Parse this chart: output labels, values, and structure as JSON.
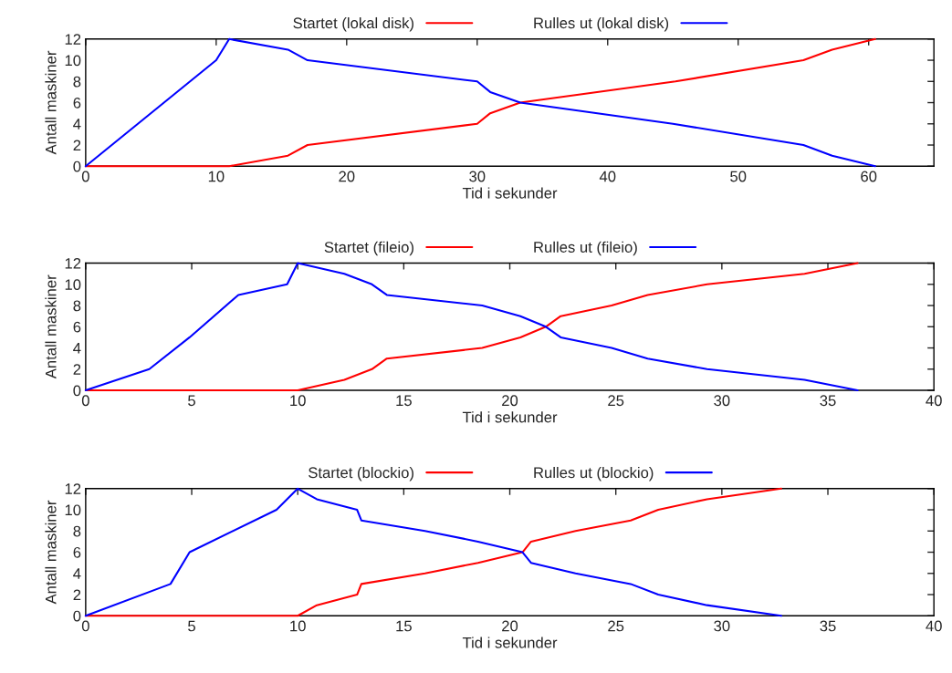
{
  "chart_data": [
    {
      "type": "line",
      "xlabel": "Tid i sekunder",
      "ylabel": "Antall maskiner",
      "xlim": [
        0,
        65
      ],
      "xticks": [
        0,
        10,
        20,
        30,
        40,
        50,
        60
      ],
      "ylim": [
        0,
        12
      ],
      "yticks": [
        0,
        2,
        4,
        6,
        8,
        10,
        12
      ],
      "legend": "top",
      "grid": false,
      "series": [
        {
          "name": "Startet (lokal disk)",
          "color": "#ff0000",
          "x": [
            0,
            11,
            15.5,
            17,
            30,
            31,
            33.3,
            45.2,
            55,
            57.2,
            60.5
          ],
          "values": [
            0,
            0,
            1,
            2,
            4,
            5,
            6,
            8,
            10,
            11,
            12
          ]
        },
        {
          "name": "Rulles ut (lokal disk)",
          "color": "#0000ff",
          "x": [
            0,
            10,
            11,
            15.5,
            17,
            30,
            31,
            33.3,
            45,
            55,
            57.2,
            60.5
          ],
          "values": [
            0,
            10,
            12,
            11,
            10,
            8,
            7,
            6,
            4,
            2,
            1,
            0
          ]
        }
      ]
    },
    {
      "type": "line",
      "xlabel": "Tid i sekunder",
      "ylabel": "Antall maskiner",
      "xlim": [
        0,
        40
      ],
      "xticks": [
        0,
        5,
        10,
        15,
        20,
        25,
        30,
        35,
        40
      ],
      "ylim": [
        0,
        12
      ],
      "yticks": [
        0,
        2,
        4,
        6,
        8,
        10,
        12
      ],
      "legend": "top",
      "grid": false,
      "series": [
        {
          "name": "Startet (fileio)",
          "color": "#ff0000",
          "x": [
            0,
            10,
            12.2,
            13.5,
            14.2,
            18.7,
            20.5,
            21.7,
            22.4,
            24.8,
            26.5,
            29.3,
            33.9,
            36.4
          ],
          "values": [
            0,
            0,
            1,
            2,
            3,
            4,
            5,
            6,
            7,
            8,
            9,
            10,
            11,
            12
          ]
        },
        {
          "name": "Rulles ut (fileio)",
          "color": "#0000ff",
          "x": [
            0,
            3,
            4.9,
            7.2,
            9.5,
            10,
            12.2,
            13.5,
            14.2,
            18.7,
            20.5,
            21.7,
            22.4,
            24.8,
            26.5,
            29.3,
            33.9,
            36.4
          ],
          "values": [
            0,
            2,
            5,
            9,
            10,
            12,
            11,
            10,
            9,
            8,
            7,
            6,
            5,
            4,
            3,
            2,
            1,
            0
          ]
        }
      ]
    },
    {
      "type": "line",
      "xlabel": "Tid i sekunder",
      "ylabel": "Antall maskiner",
      "xlim": [
        0,
        40
      ],
      "xticks": [
        0,
        5,
        10,
        15,
        20,
        25,
        30,
        35,
        40
      ],
      "ylim": [
        0,
        12
      ],
      "yticks": [
        0,
        2,
        4,
        6,
        8,
        10,
        12
      ],
      "legend": "top",
      "grid": false,
      "series": [
        {
          "name": "Startet (blockio)",
          "color": "#ff0000",
          "x": [
            0,
            10,
            10.9,
            12.8,
            13.0,
            16,
            18.5,
            20.6,
            21.0,
            23.1,
            25.7,
            27.0,
            29.3,
            32.8
          ],
          "values": [
            0,
            0,
            1,
            2,
            3,
            4,
            5,
            6,
            7,
            8,
            9,
            10,
            11,
            12
          ]
        },
        {
          "name": "Rulles ut (blockio)",
          "color": "#0000ff",
          "x": [
            0,
            4.0,
            4.9,
            9.0,
            10,
            10.9,
            12.8,
            13.0,
            16,
            18.5,
            20.6,
            21.0,
            23.1,
            25.7,
            27.0,
            29.3,
            32.8
          ],
          "values": [
            0,
            3,
            6,
            10,
            12,
            11,
            10,
            9,
            8,
            7,
            6,
            5,
            4,
            3,
            2,
            1,
            0
          ]
        }
      ]
    }
  ]
}
